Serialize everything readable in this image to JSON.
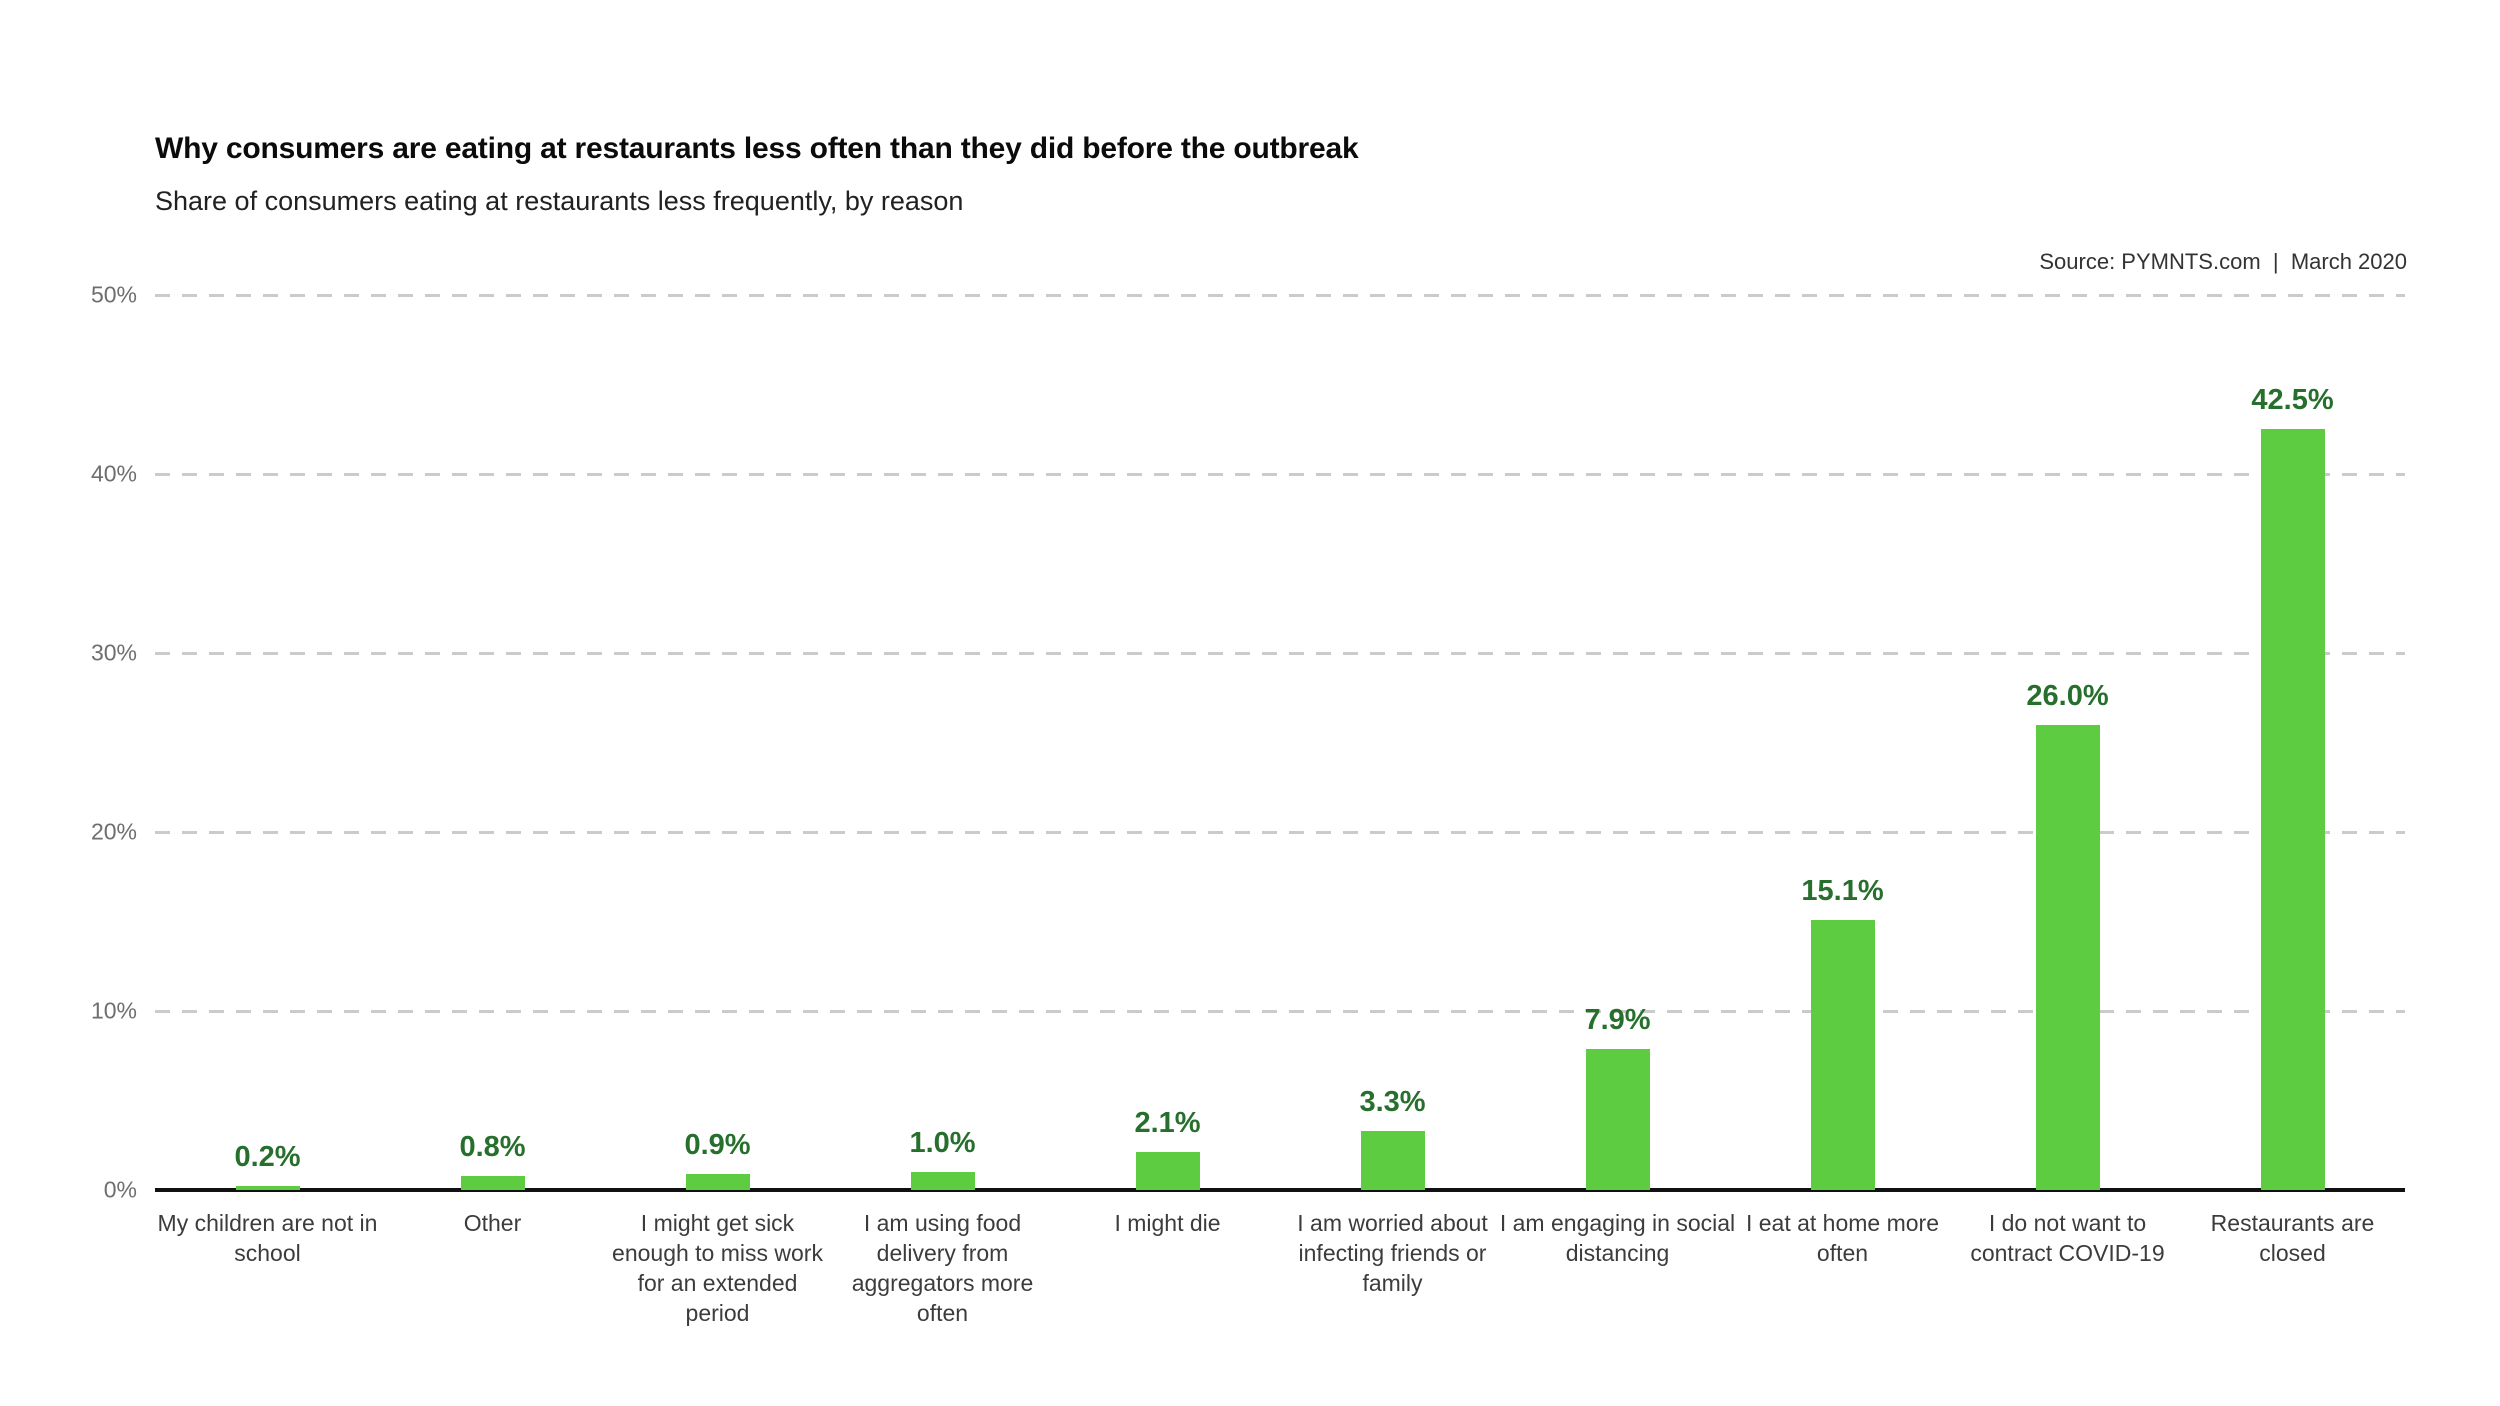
{
  "header": {
    "title": "Why consumers are eating at restaurants less often than they did before the outbreak",
    "subtitle": "Share of consumers eating at restaurants less frequently, by reason",
    "source": "Source: PYMNTS.com  |  March 2020"
  },
  "chart_data": {
    "type": "bar",
    "title": "Why consumers are eating at restaurants less often than they did before the outbreak",
    "subtitle": "Share of consumers eating at restaurants less frequently, by reason",
    "source": "Source: PYMNTS.com | March 2020",
    "categories": [
      "My children are not in school",
      "Other",
      "I might get sick enough to miss work for an extended period",
      "I am using food delivery from aggregators more often",
      "I might die",
      "I am worried about infecting friends or family",
      "I am engaging in social distancing",
      "I eat at home more often",
      "I do not want to contract COVID-19",
      "Restaurants are closed"
    ],
    "category_lines": [
      "My children are not in\nschool",
      "Other",
      "I might get sick\nenough to miss work\nfor an extended\nperiod",
      "I am using food\ndelivery from\naggregators more\noften",
      "I might die",
      "I am worried about\ninfecting friends or\nfamily",
      "I am engaging in social\ndistancing",
      "I eat at home more\noften",
      "I do not want to\ncontract COVID-19",
      "Restaurants are\nclosed"
    ],
    "values": [
      0.2,
      0.8,
      0.9,
      1.0,
      2.1,
      3.3,
      7.9,
      15.1,
      26.0,
      42.5
    ],
    "value_labels": [
      "0.2%",
      "0.8%",
      "0.9%",
      "1.0%",
      "2.1%",
      "3.3%",
      "7.9%",
      "15.1%",
      "26.0%",
      "42.5%"
    ],
    "xlabel": "",
    "ylabel": "",
    "ylim": [
      0,
      50
    ],
    "yticks": [
      0,
      10,
      20,
      30,
      40,
      50
    ],
    "ytick_labels": [
      "0%",
      "10%",
      "20%",
      "30%",
      "40%",
      "50%"
    ],
    "grid": "horizontal-dashed",
    "legend": "none",
    "colors": {
      "bar": "#5ecc40",
      "value_label": "#276f2c",
      "category_label": "#3c3c3c",
      "ytick_label": "#6e6e6e",
      "gridline": "#cbcbcb",
      "axis": "#111111",
      "background": "#ffffff"
    }
  }
}
